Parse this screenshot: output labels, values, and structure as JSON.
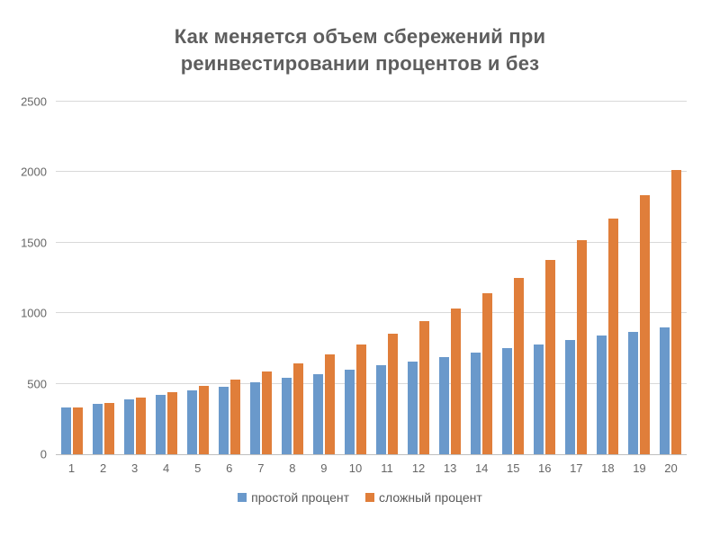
{
  "chart_data": {
    "type": "bar",
    "title": "Как меняется объем сбережений при\nреинвестировании процентов и без",
    "categories": [
      "1",
      "2",
      "3",
      "4",
      "5",
      "6",
      "7",
      "8",
      "9",
      "10",
      "11",
      "12",
      "13",
      "14",
      "15",
      "16",
      "17",
      "18",
      "19",
      "20"
    ],
    "series": [
      {
        "id": "simple_interest",
        "name": "простой процент",
        "color": "#6a99cb",
        "values": [
          330,
          360,
          390,
          420,
          450,
          480,
          510,
          540,
          570,
          600,
          630,
          660,
          690,
          720,
          750,
          780,
          810,
          840,
          870,
          900
        ]
      },
      {
        "id": "compound_interest",
        "name": "сложный процент",
        "color": "#e07e3a",
        "values": [
          330,
          363,
          399,
          439,
          483,
          531,
          585,
          643,
          707,
          778,
          856,
          942,
          1036,
          1139,
          1253,
          1378,
          1516,
          1668,
          1835,
          2018
        ]
      }
    ],
    "xlabel": "",
    "ylabel": "",
    "ylim": [
      0,
      2500
    ],
    "yticks": [
      0,
      500,
      1000,
      1500,
      2000,
      2500
    ],
    "grid": true,
    "legend_position": "bottom",
    "colors": {
      "gridline": "#d9d9d9",
      "axis_line": "#bfbfbf",
      "tick_text": "#666666",
      "title_text": "#5e5e5e",
      "legend_text": "#595959",
      "background": "#ffffff"
    }
  }
}
